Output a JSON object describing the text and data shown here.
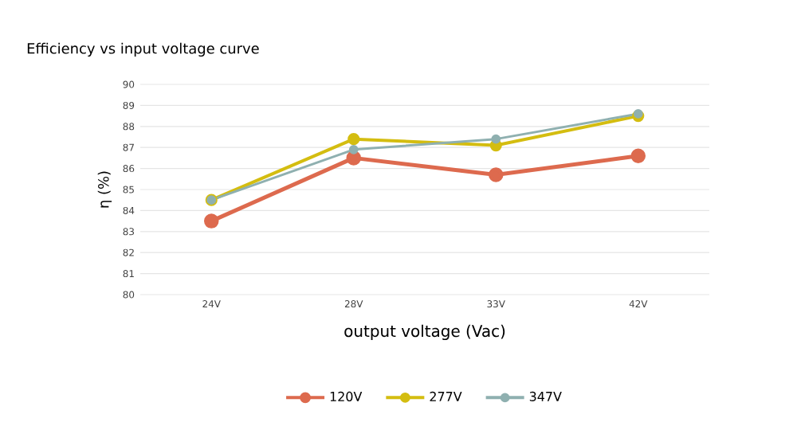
{
  "chart_data": {
    "type": "line",
    "title": "Efficiency vs input voltage curve",
    "xlabel": "output voltage (Vac)",
    "ylabel": "η (%)",
    "categories": [
      "24V",
      "28V",
      "33V",
      "42V"
    ],
    "series": [
      {
        "name": "120V",
        "color": "#dd6a4e",
        "values": [
          83.5,
          86.5,
          85.7,
          86.6
        ]
      },
      {
        "name": "277V",
        "color": "#d4bd10",
        "values": [
          84.5,
          87.4,
          87.1,
          88.5
        ]
      },
      {
        "name": "347V",
        "color": "#8fb0b0",
        "values": [
          84.5,
          86.9,
          87.4,
          88.6
        ]
      }
    ],
    "ylim": [
      80,
      90
    ],
    "yticks": [
      80,
      81,
      82,
      83,
      84,
      85,
      86,
      87,
      88,
      89,
      90
    ],
    "grid": "y",
    "legend": "bottom",
    "marker": "circle",
    "line_style": "solid"
  }
}
